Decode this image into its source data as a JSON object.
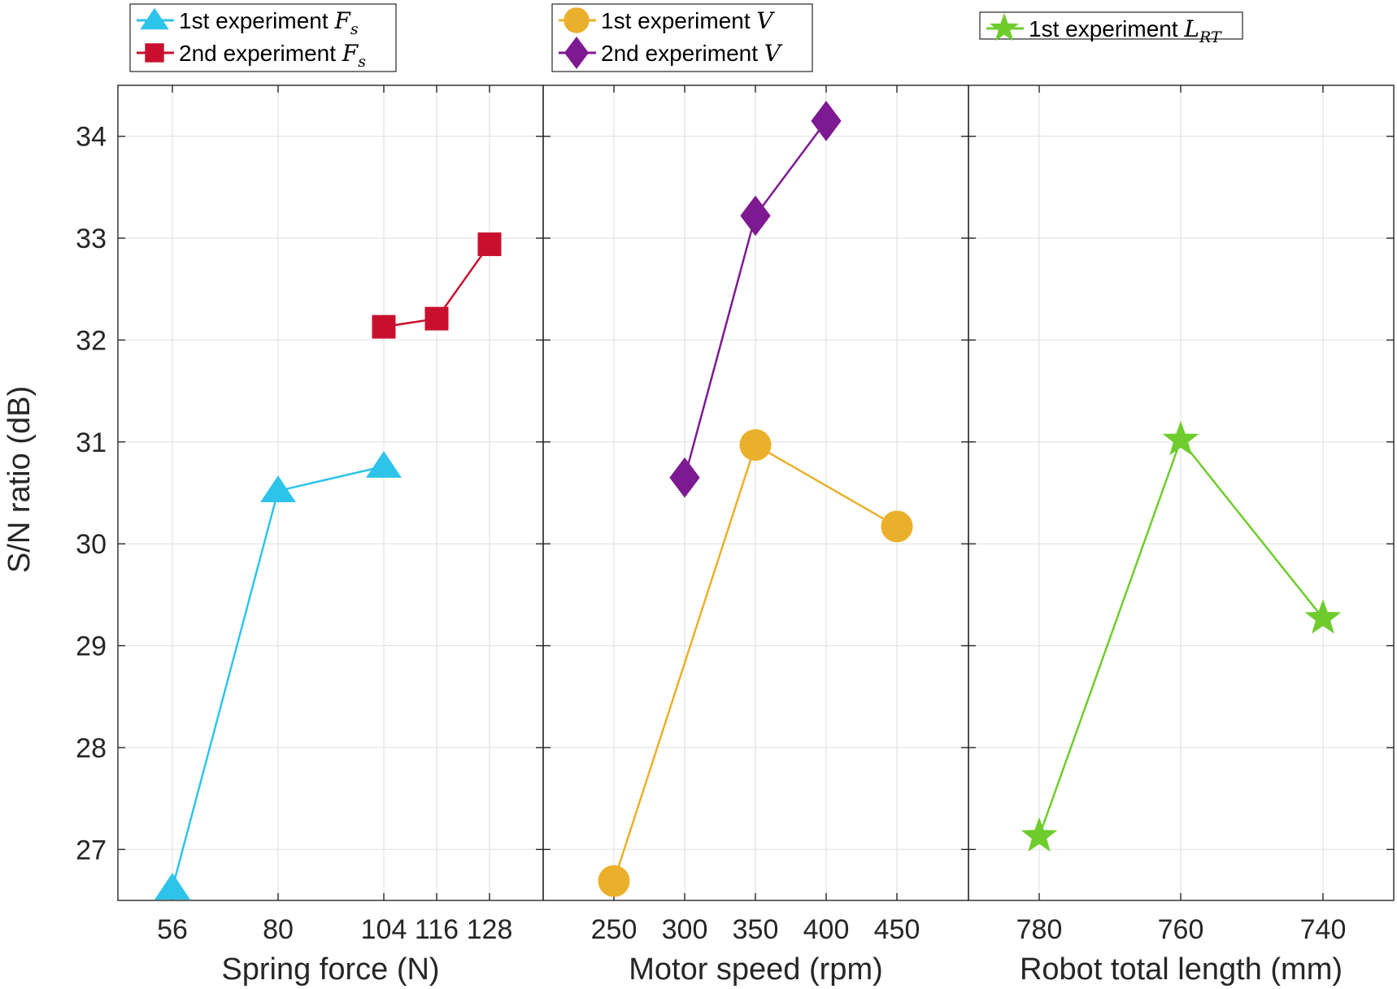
{
  "chart_data": {
    "type": "line",
    "ylabel": "S/N ratio (dB)",
    "ylim": [
      26.5,
      34.5
    ],
    "yticks": [
      27,
      28,
      29,
      30,
      31,
      32,
      33,
      34
    ],
    "grid": true,
    "panels": [
      {
        "id": "spring",
        "xlabel": "Spring force (N)",
        "categories": [
          "56",
          "80",
          "104",
          "116",
          "128"
        ],
        "series": [
          {
            "name": "1st experiment",
            "symbol": "F",
            "sub": "s",
            "color": "#2ec4ea",
            "marker": "triangle",
            "x": [
              "56",
              "80",
              "104"
            ],
            "values": [
              26.62,
              30.52,
              30.76
            ]
          },
          {
            "name": "2nd experiment",
            "symbol": "F",
            "sub": "s",
            "color": "#c8102e",
            "marker": "square",
            "x": [
              "104",
              "116",
              "128"
            ],
            "values": [
              32.13,
              32.21,
              32.94
            ]
          }
        ]
      },
      {
        "id": "motor",
        "xlabel": "Motor speed (rpm)",
        "categories": [
          "250",
          "300",
          "350",
          "400",
          "450"
        ],
        "series": [
          {
            "name": "1st experiment",
            "symbol": "V",
            "sub": "",
            "color": "#ebb02b",
            "marker": "circle",
            "x": [
              "250",
              "350",
              "450"
            ],
            "values": [
              26.69,
              30.97,
              30.17
            ]
          },
          {
            "name": "2nd experiment",
            "symbol": "V",
            "sub": "",
            "color": "#7e1a91",
            "marker": "diamond",
            "x": [
              "300",
              "350",
              "400"
            ],
            "values": [
              30.65,
              33.22,
              34.15
            ]
          }
        ]
      },
      {
        "id": "robot",
        "xlabel": "Robot total length (mm)",
        "categories": [
          "780",
          "760",
          "740"
        ],
        "series": [
          {
            "name": "1st experiment",
            "symbol": "L",
            "sub": "RT",
            "color": "#6ecc2c",
            "marker": "star",
            "x": [
              "780",
              "760",
              "740"
            ],
            "values": [
              27.13,
              31.02,
              29.27
            ]
          }
        ]
      }
    ]
  }
}
